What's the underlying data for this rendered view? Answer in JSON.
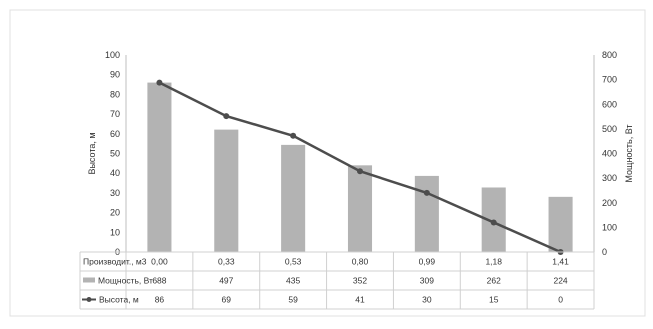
{
  "chart_data": {
    "type": "bar-line-combo",
    "categories": [
      "0,00",
      "0,33",
      "0,53",
      "0,80",
      "0,99",
      "1,18",
      "1,41"
    ],
    "row_header": "Производит., м3",
    "series": [
      {
        "name": "Мощность, Вт",
        "type": "bar",
        "axis": "right",
        "values": [
          688,
          497,
          435,
          352,
          309,
          262,
          224
        ],
        "color": "#b3b3b3"
      },
      {
        "name": "Высота, м",
        "type": "line",
        "axis": "left",
        "values": [
          86,
          69,
          59,
          41,
          30,
          15,
          0
        ],
        "color": "#4d4d4d"
      }
    ],
    "y_left": {
      "label": "Высота, м",
      "min": 0,
      "max": 100,
      "ticks": [
        0,
        10,
        20,
        30,
        40,
        50,
        60,
        70,
        80,
        90,
        100
      ]
    },
    "y_right": {
      "label": "Мощность, Вт",
      "min": 0,
      "max": 800,
      "ticks": [
        0,
        100,
        200,
        300,
        400,
        500,
        600,
        700,
        800
      ]
    },
    "grid": false,
    "legend": "data-table"
  }
}
